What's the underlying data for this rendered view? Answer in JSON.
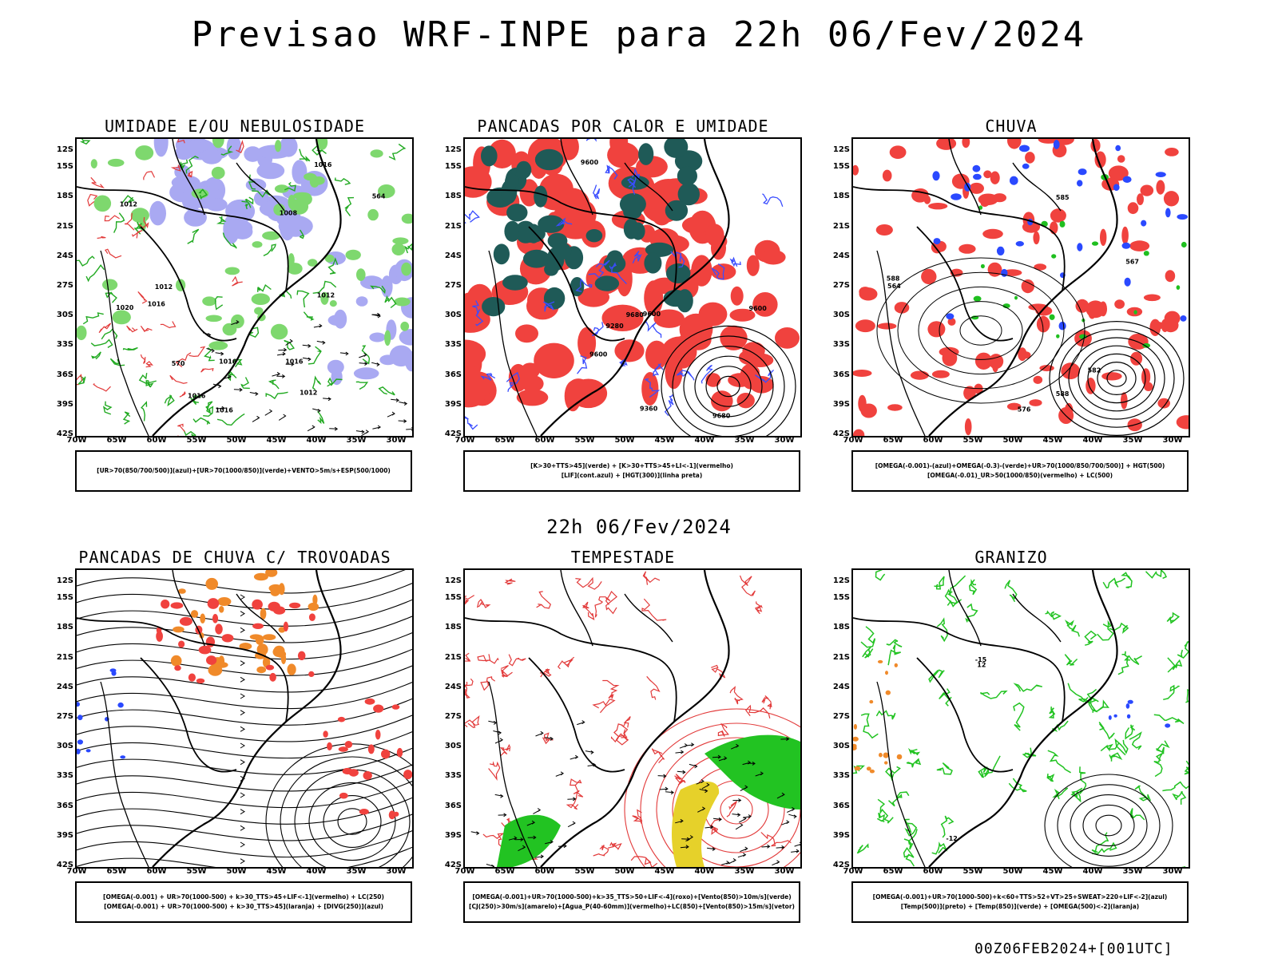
{
  "main_title": "Previsao WRF-INPE  para 22h 06/Fev/2024",
  "mid_title": "22h 06/Fev/2024",
  "footer_stamp": "00Z06FEB2024+[001UTC]",
  "lat_labels": [
    "12S",
    "15S",
    "18S",
    "21S",
    "24S",
    "27S",
    "30S",
    "33S",
    "36S",
    "39S",
    "42S"
  ],
  "lon_labels": [
    "70W",
    "65W",
    "60W",
    "55W",
    "50W",
    "45W",
    "40W",
    "35W",
    "30W"
  ],
  "panels": [
    {
      "title": "UMIDADE E/OU NEBULOSIDADE",
      "legend": [
        "[UR>70(850/700/500)](azul)+[UR>70(1000/850)](verde)+VENTO>5m/s+ESP(500/1000)"
      ],
      "style": "humidity",
      "colors": {
        "fill1": "#a9a9f2",
        "fill2": "#7ed86e",
        "line1": "#22aa22",
        "line2": "#e23a3a"
      },
      "contour_labels": [
        "1012",
        "1016",
        "1016",
        "1016",
        "1016",
        "1012",
        "1008",
        "1012",
        "1016",
        "1020",
        "1016",
        "1012",
        "570",
        "564"
      ]
    },
    {
      "title": "PANCADAS POR CALOR E UMIDADE",
      "legend": [
        "[K>30+TTS>45](verde) + [K>30+TTS>45+LI<-1](vermelho)",
        "[LIF](cont.azul) + [HGT(300)](linha preta)"
      ],
      "style": "convection",
      "colors": {
        "fill1": "#f0423e",
        "fill2": "#1f5a57",
        "line1": "#3a4dff",
        "line2": "#000000"
      },
      "contour_labels": [
        "9680",
        "9680",
        "9600",
        "9600",
        "9600",
        "9360",
        "9280",
        "9600"
      ]
    },
    {
      "title": "CHUVA",
      "legend": [
        "[OMEGA(-0.001)-(azul)+OMEGA(-0.3)-(verde)+UR>70(1000/850/700/500)] + HGT(500)",
        "[OMEGA(-0.01)_UR>50(1000/850)(vermelho) + LC(500)"
      ],
      "style": "rain",
      "colors": {
        "fill1": "#f0423e",
        "fill2": "#2a49ff",
        "line1": "#000000",
        "line2": "#1fbf1f"
      },
      "contour_labels": [
        "588",
        "588",
        "582",
        "585",
        "576",
        "567",
        "564"
      ]
    },
    {
      "title": "PANCADAS DE CHUVA C/ TROVOADAS",
      "legend": [
        "[OMEGA(-0.001) + UR>70(1000-500) + k>30_TTS>45+LIF<-1](vermelho) + LC(250)",
        "[OMEGA(-0.001) + UR>70(1000-500) + k>30_TTS>45](laranja) + [DIVG(250)](azul)"
      ],
      "style": "storms",
      "colors": {
        "fill1": "#f0423e",
        "fill2": "#f08a2a",
        "line1": "#000000",
        "line2": "#2a49ff"
      },
      "contour_labels": []
    },
    {
      "title": "TEMPESTADE",
      "legend": [
        "[OMEGA(-0.001)+UR>70(1000-500)+k>35_TTS>50+LIF<-4](roxo)+[Vento(850)>10m/s](verde)",
        "[CJ(250)>30m/s](amarelo)+[Agua_P(40-60mm)](vermelho)+LC(850)+[Vento(850)>15m/s](vetor)"
      ],
      "style": "tempest",
      "colors": {
        "fill1": "#22c322",
        "fill2": "#e6d12a",
        "line1": "#e23a3a",
        "line2": "#000000"
      },
      "contour_labels": []
    },
    {
      "title": "GRANIZO",
      "legend": [
        "[OMEGA(-0.001)+UR>70(1000-500)+k<60+TTS>52+VT>25+SWEAT>220+LIF<-2](azul)",
        "[Temp(500)](preto) + [Temp(850)](verde) + [OMEGA(500)<-2](laranja)"
      ],
      "style": "hail",
      "colors": {
        "fill1": "#22c322",
        "fill2": "#2a49ff",
        "line1": "#000000",
        "line2": "#f08a2a"
      },
      "contour_labels": [
        "-12",
        "-15",
        "12"
      ]
    }
  ]
}
